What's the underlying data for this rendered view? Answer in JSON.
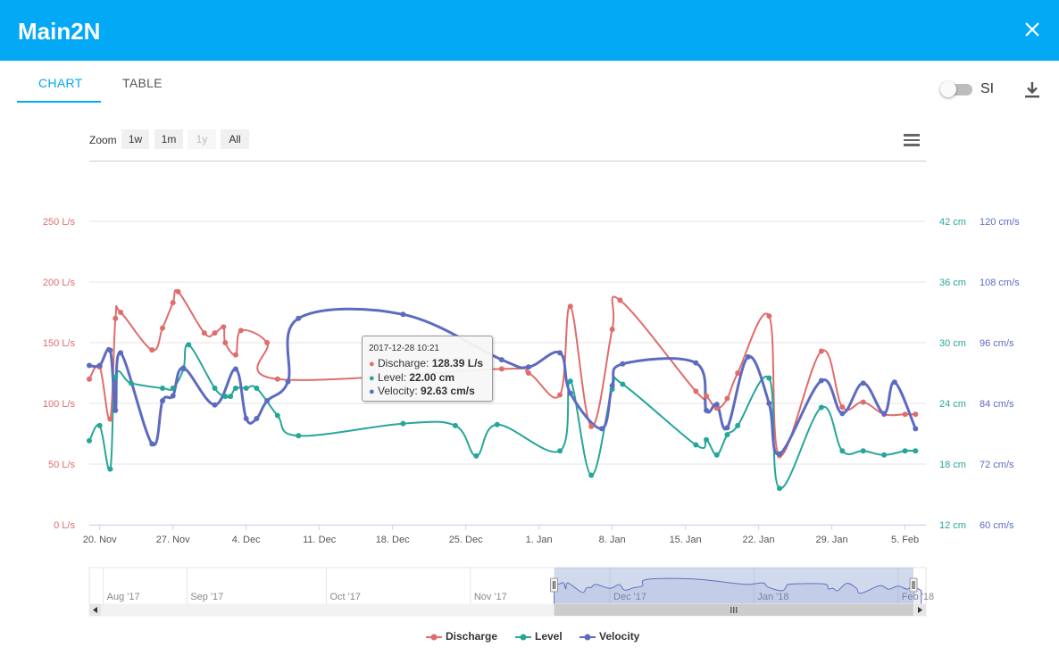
{
  "header": {
    "title": "Main2N"
  },
  "tabs": [
    {
      "label": "CHART",
      "active": true
    },
    {
      "label": "TABLE",
      "active": false
    }
  ],
  "units_toggle": {
    "label": "SI",
    "on": false
  },
  "zoom": {
    "label": "Zoom",
    "buttons": [
      {
        "label": "1w",
        "enabled": true
      },
      {
        "label": "1m",
        "enabled": true
      },
      {
        "label": "1y",
        "enabled": false
      },
      {
        "label": "All",
        "enabled": true
      }
    ]
  },
  "colors": {
    "header": "#03a9f4",
    "discharge": "#e06c6c",
    "level": "#26a69a",
    "velocity": "#5c6bc0"
  },
  "chart_data": {
    "type": "line",
    "title": "",
    "x_range": [
      "2017-11-19",
      "2018-02-07"
    ],
    "x_ticks": [
      "20. Nov",
      "27. Nov",
      "4. Dec",
      "11. Dec",
      "18. Dec",
      "25. Dec",
      "1. Jan",
      "8. Jan",
      "15. Jan",
      "22. Jan",
      "29. Jan",
      "5. Feb"
    ],
    "y_axes": [
      {
        "series": "Discharge",
        "unit": "L/s",
        "range": [
          0,
          250
        ],
        "ticks": [
          "0 L/s",
          "50 L/s",
          "100 L/s",
          "150 L/s",
          "200 L/s",
          "250 L/s"
        ],
        "side": "left"
      },
      {
        "series": "Level",
        "unit": "cm",
        "range": [
          12,
          42
        ],
        "ticks": [
          "12 cm",
          "18 cm",
          "24 cm",
          "30 cm",
          "36 cm",
          "42 cm"
        ],
        "side": "right"
      },
      {
        "series": "Velocity",
        "unit": "cm/s",
        "range": [
          60,
          120
        ],
        "ticks": [
          "60 cm/s",
          "72 cm/s",
          "84 cm/s",
          "96 cm/s",
          "108 cm/s",
          "120 cm/s"
        ],
        "side": "right"
      }
    ],
    "grid": true,
    "legend": "bottom-center",
    "series": [
      {
        "name": "Discharge",
        "unit": "L/s",
        "points": [
          [
            "2017-11-19",
            120
          ],
          [
            "2017-11-20",
            130
          ],
          [
            "2017-11-21",
            87
          ],
          [
            "2017-11-21 12:00",
            170
          ],
          [
            "2017-11-22",
            175
          ],
          [
            "2017-11-25",
            144
          ],
          [
            "2017-11-26",
            162
          ],
          [
            "2017-11-27",
            183
          ],
          [
            "2017-11-27 12:00",
            192
          ],
          [
            "2017-11-30",
            158
          ],
          [
            "2017-12-01",
            158
          ],
          [
            "2017-12-01 20:00",
            163
          ],
          [
            "2017-12-02",
            150
          ],
          [
            "2017-12-03",
            140
          ],
          [
            "2017-12-03 12:00",
            160
          ],
          [
            "2017-12-06",
            150
          ],
          [
            "2017-12-07",
            120
          ],
          [
            "2017-12-28 10:21",
            128.39
          ],
          [
            "2017-12-31",
            125
          ],
          [
            "2018-01-03",
            107
          ],
          [
            "2018-01-04",
            180
          ],
          [
            "2018-01-06",
            81
          ],
          [
            "2018-01-08",
            161
          ],
          [
            "2018-01-08 18:00",
            185
          ],
          [
            "2018-01-16",
            110
          ],
          [
            "2018-01-17",
            106
          ],
          [
            "2018-01-18",
            96
          ],
          [
            "2018-01-19",
            104
          ],
          [
            "2018-01-20",
            125
          ],
          [
            "2018-01-23",
            172
          ],
          [
            "2018-01-24",
            57
          ],
          [
            "2018-01-28",
            143
          ],
          [
            "2018-01-30",
            97
          ],
          [
            "2018-02-01",
            101
          ],
          [
            "2018-02-03",
            91
          ],
          [
            "2018-02-05",
            91
          ],
          [
            "2018-02-06",
            91
          ]
        ]
      },
      {
        "name": "Level",
        "unit": "cm",
        "points": [
          [
            "2017-11-19",
            20.3
          ],
          [
            "2017-11-20",
            21.8
          ],
          [
            "2017-11-21",
            17.5
          ],
          [
            "2017-11-21 12:00",
            26.6
          ],
          [
            "2017-11-23",
            26.0
          ],
          [
            "2017-11-26",
            25.5
          ],
          [
            "2017-11-27",
            25.5
          ],
          [
            "2017-11-28",
            27.4
          ],
          [
            "2017-11-28 12:00",
            29.8
          ],
          [
            "2017-12-01",
            25.5
          ],
          [
            "2017-12-02",
            24.7
          ],
          [
            "2017-12-02 12:00",
            24.7
          ],
          [
            "2017-12-03",
            25.5
          ],
          [
            "2017-12-04",
            25.5
          ],
          [
            "2017-12-05",
            25.5
          ],
          [
            "2017-12-07",
            22.8
          ],
          [
            "2017-12-09",
            20.8
          ],
          [
            "2017-12-19",
            22.0
          ],
          [
            "2017-12-24",
            21.8
          ],
          [
            "2017-12-26",
            18.8
          ],
          [
            "2017-12-28",
            21.9
          ],
          [
            "2018-01-03",
            19.3
          ],
          [
            "2018-01-04",
            26.2
          ],
          [
            "2018-01-06",
            16.9
          ],
          [
            "2018-01-08",
            25.4
          ],
          [
            "2018-01-09",
            25.9
          ],
          [
            "2018-01-16",
            19.9
          ],
          [
            "2018-01-17",
            20.4
          ],
          [
            "2018-01-18",
            18.9
          ],
          [
            "2018-01-19",
            20.9
          ],
          [
            "2018-01-20",
            21.8
          ],
          [
            "2018-01-23",
            26.5
          ],
          [
            "2018-01-24",
            15.6
          ],
          [
            "2018-01-28",
            23.6
          ],
          [
            "2018-01-30",
            19.3
          ],
          [
            "2018-02-01",
            19.3
          ],
          [
            "2018-02-03",
            18.9
          ],
          [
            "2018-02-05",
            19.3
          ],
          [
            "2018-02-06",
            19.3
          ]
        ]
      },
      {
        "name": "Velocity",
        "unit": "cm/s",
        "points": [
          [
            "2017-11-19",
            91.5
          ],
          [
            "2017-11-20",
            91.5
          ],
          [
            "2017-11-21",
            94.5
          ],
          [
            "2017-11-21 12:00",
            82.6
          ],
          [
            "2017-11-22",
            94.0
          ],
          [
            "2017-11-25",
            76.0
          ],
          [
            "2017-11-26",
            84.5
          ],
          [
            "2017-11-27",
            85.5
          ],
          [
            "2017-11-28",
            91.0
          ],
          [
            "2017-12-01",
            83.7
          ],
          [
            "2017-12-03",
            90.8
          ],
          [
            "2017-12-04",
            81.0
          ],
          [
            "2017-12-05",
            81.0
          ],
          [
            "2017-12-06",
            84.5
          ],
          [
            "2017-12-08",
            88.3
          ],
          [
            "2017-12-09",
            100.8
          ],
          [
            "2017-12-19",
            101.6
          ],
          [
            "2017-12-28 10:21",
            92.63
          ],
          [
            "2017-12-31",
            91.2
          ],
          [
            "2018-01-03",
            94.0
          ],
          [
            "2018-01-04",
            86.0
          ],
          [
            "2018-01-07",
            79.0
          ],
          [
            "2018-01-08",
            87.5
          ],
          [
            "2018-01-09",
            91.8
          ],
          [
            "2018-01-16",
            92.0
          ],
          [
            "2018-01-17",
            82.6
          ],
          [
            "2018-01-18",
            83.8
          ],
          [
            "2018-01-19",
            79.2
          ],
          [
            "2018-01-21",
            93.2
          ],
          [
            "2018-01-23",
            84.0
          ],
          [
            "2018-01-24",
            74.0
          ],
          [
            "2018-01-28",
            88.5
          ],
          [
            "2018-01-30",
            82.0
          ],
          [
            "2018-02-01",
            88.0
          ],
          [
            "2018-02-03",
            82.0
          ],
          [
            "2018-02-04",
            88.2
          ],
          [
            "2018-02-06",
            79.0
          ]
        ]
      }
    ],
    "tooltip": {
      "date": "2017-12-28 10:21",
      "rows": [
        {
          "series": "Discharge",
          "label": "Discharge: ",
          "value": "128.39 L/s"
        },
        {
          "series": "Level",
          "label": "Level: ",
          "value": "22.00 cm"
        },
        {
          "series": "Velocity",
          "label": "Velocity: ",
          "value": "92.63 cm/s"
        }
      ]
    },
    "navigator": {
      "x_range": [
        "2017-08-11",
        "2018-02-07"
      ],
      "ticks": [
        "Aug '17",
        "Sep '17",
        "Oct '17",
        "Nov '17",
        "Dec '17",
        "Jan '18",
        "Feb '18"
      ],
      "selection": [
        "2017-11-19",
        "2018-02-07"
      ]
    }
  }
}
